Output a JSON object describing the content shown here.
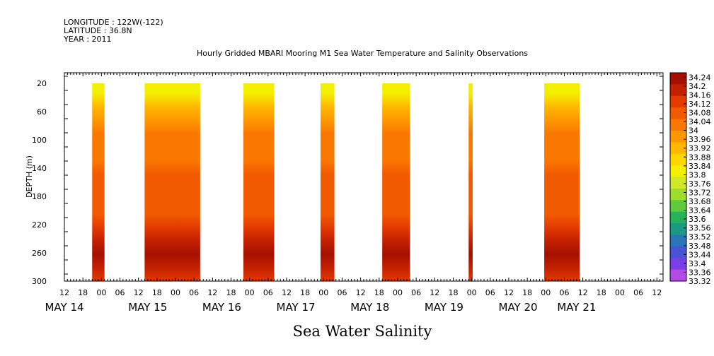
{
  "header": {
    "longitude": "LONGITUDE : 122W(-122)",
    "latitude": "LATITUDE : 36.8N",
    "year": "YEAR : 2011"
  },
  "colors": {
    "ramp": [
      "#a41000",
      "#c42000",
      "#e33a00",
      "#f25a00",
      "#fb7800",
      "#fd9800",
      "#ffb700",
      "#ffd600",
      "#f3ef00",
      "#cfe92a",
      "#9dde2c",
      "#5fcb3c",
      "#26b25a",
      "#1a9a82",
      "#2a74b8",
      "#4a53d6",
      "#7a3ee6",
      "#b44ae6"
    ]
  },
  "chart_data": {
    "type": "heatmap",
    "title": "Hourly Gridded MBARI Mooring M1 Sea Water Temperature and Salinity Observations",
    "bottom_title": "Sea Water Salinity",
    "ylabel": "DEPTH (m)",
    "ylim": [
      300,
      5
    ],
    "y_ticks": [
      20,
      60,
      100,
      140,
      180,
      220,
      260,
      300
    ],
    "x_hour_ticks": [
      "12",
      "18",
      "00",
      "06",
      "12",
      "18",
      "00",
      "06",
      "12",
      "18",
      "00",
      "06",
      "12",
      "18",
      "00",
      "06",
      "12",
      "18",
      "00",
      "06",
      "12",
      "18",
      "00",
      "06",
      "12",
      "18",
      "00",
      "06",
      "12",
      "18",
      "00",
      "06",
      "12"
    ],
    "x_hour_tick_hours": [
      12,
      18,
      24,
      30,
      36,
      42,
      48,
      54,
      60,
      66,
      72,
      78,
      84,
      90,
      96,
      102,
      108,
      114,
      120,
      126,
      132,
      138,
      144,
      150,
      156,
      162,
      168,
      174,
      180,
      186,
      192,
      198,
      204
    ],
    "x_date_labels": [
      {
        "label": "MAY 14",
        "hour": 12
      },
      {
        "label": "MAY 15",
        "hour": 39
      },
      {
        "label": "MAY 16",
        "hour": 63
      },
      {
        "label": "MAY 17",
        "hour": 87
      },
      {
        "label": "MAY 18",
        "hour": 111
      },
      {
        "label": "MAY 19",
        "hour": 135
      },
      {
        "label": "MAY 20",
        "hour": 159
      },
      {
        "label": "MAY 21",
        "hour": 178
      }
    ],
    "xlim_hours": [
      12,
      206
    ],
    "colorbar_labels": [
      "34.24",
      "34.2",
      "34.16",
      "34.12",
      "34.08",
      "34.04",
      "34",
      "33.96",
      "33.92",
      "33.88",
      "33.84",
      "33.8",
      "33.76",
      "33.72",
      "33.68",
      "33.64",
      "33.6",
      "33.56",
      "33.52",
      "33.48",
      "33.44",
      "33.4",
      "33.36",
      "33.32"
    ],
    "colorbar_range": [
      33.32,
      34.26
    ],
    "segments": [
      {
        "start_hour": 21,
        "end_hour": 25,
        "top_depth": 20,
        "bottom_depth": 300
      },
      {
        "start_hour": 38,
        "end_hour": 56,
        "top_depth": 20,
        "bottom_depth": 300
      },
      {
        "start_hour": 70,
        "end_hour": 80,
        "top_depth": 20,
        "bottom_depth": 300
      },
      {
        "start_hour": 95,
        "end_hour": 99.5,
        "top_depth": 20,
        "bottom_depth": 300
      },
      {
        "start_hour": 115,
        "end_hour": 124,
        "top_depth": 20,
        "bottom_depth": 300
      },
      {
        "start_hour": 143,
        "end_hour": 144.3,
        "top_depth": 20,
        "bottom_depth": 300
      },
      {
        "start_hour": 167.5,
        "end_hour": 179,
        "top_depth": 20,
        "bottom_depth": 300
      }
    ],
    "profile": [
      {
        "depth": 20,
        "value": 33.84
      },
      {
        "depth": 40,
        "value": 33.9
      },
      {
        "depth": 60,
        "value": 33.98
      },
      {
        "depth": 80,
        "value": 34.02
      },
      {
        "depth": 100,
        "value": 34.02
      },
      {
        "depth": 120,
        "value": 34.04
      },
      {
        "depth": 140,
        "value": 34.07
      },
      {
        "depth": 160,
        "value": 34.09
      },
      {
        "depth": 180,
        "value": 34.09
      },
      {
        "depth": 200,
        "value": 34.1
      },
      {
        "depth": 220,
        "value": 34.14
      },
      {
        "depth": 240,
        "value": 34.2
      },
      {
        "depth": 260,
        "value": 34.21
      },
      {
        "depth": 280,
        "value": 34.17
      },
      {
        "depth": 300,
        "value": 34.15
      }
    ]
  }
}
